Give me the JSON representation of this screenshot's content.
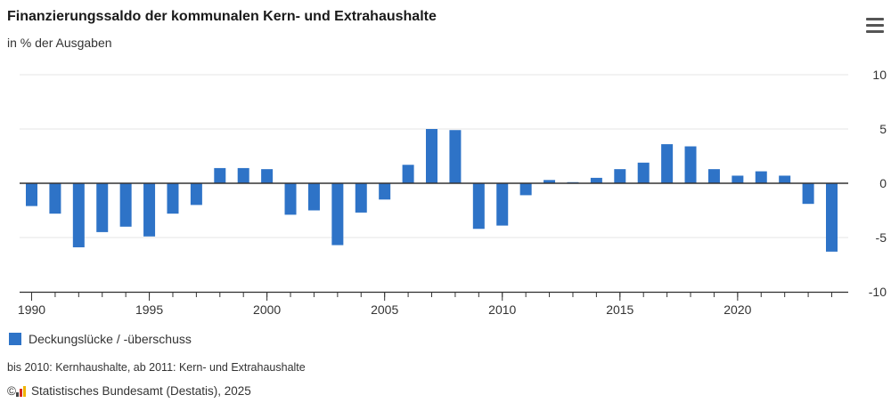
{
  "header": {
    "title": "Finanzierungssaldo der kommunalen Kern- und Extrahaushalte",
    "subtitle": "in % der Ausgaben"
  },
  "menu": {
    "icon": "hamburger-menu-icon"
  },
  "legend": {
    "label": "Deckungslücke / -überschuss"
  },
  "footer": {
    "note": "bis 2010: Kernhaushalte, ab 2011: Kern- und Extrahaushalte",
    "copyright_symbol": "©",
    "logo_icon": "destatis-logo-icon",
    "source": "Statistisches Bundesamt (Destatis), 2025"
  },
  "colors": {
    "bar": "#2e73c7",
    "axis": "#333333",
    "grid": "#e6e6e6"
  },
  "chart_data": {
    "type": "bar",
    "title": "Finanzierungssaldo der kommunalen Kern- und Extrahaushalte",
    "subtitle": "in % der Ausgaben",
    "categories": [
      1990,
      1991,
      1992,
      1993,
      1994,
      1995,
      1996,
      1997,
      1998,
      1999,
      2000,
      2001,
      2002,
      2003,
      2004,
      2005,
      2006,
      2007,
      2008,
      2009,
      2010,
      2011,
      2012,
      2013,
      2014,
      2015,
      2016,
      2017,
      2018,
      2019,
      2020,
      2021,
      2022,
      2023,
      2024
    ],
    "x_tick_labels": [
      "1990",
      "1995",
      "2000",
      "2005",
      "2010",
      "2015",
      "2020"
    ],
    "y_tick_labels": [
      "10",
      "5",
      "0",
      "-5",
      "-10"
    ],
    "y_axis_position": "right",
    "ylim": [
      -10,
      10
    ],
    "grid": true,
    "legend_position": "bottom-left",
    "series": [
      {
        "name": "Deckungslücke / -überschuss",
        "values": [
          -2.1,
          -2.8,
          -5.9,
          -4.5,
          -4.0,
          -4.9,
          -2.8,
          -2.0,
          1.4,
          1.4,
          1.3,
          -2.9,
          -2.5,
          -5.7,
          -2.7,
          -1.5,
          1.7,
          5.0,
          4.9,
          -4.2,
          -3.9,
          -1.1,
          0.3,
          0.1,
          0.5,
          1.3,
          1.9,
          3.6,
          3.4,
          1.3,
          0.7,
          1.1,
          0.7,
          -1.9,
          -6.3
        ]
      }
    ]
  }
}
